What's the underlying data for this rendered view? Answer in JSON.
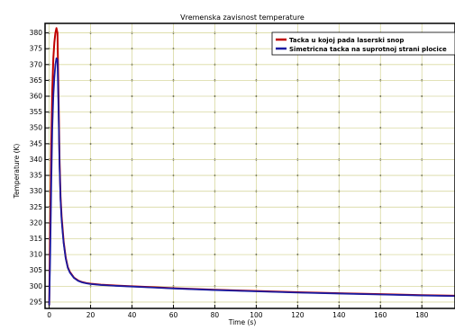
{
  "chart_data": {
    "type": "line",
    "title": "Vremenska zavisnost temperature",
    "xlabel": "Time (s)",
    "ylabel": "Temperature (K)",
    "xlim": [
      -2,
      196
    ],
    "ylim": [
      293,
      383
    ],
    "xticks": [
      0,
      20,
      40,
      60,
      80,
      100,
      120,
      140,
      160,
      180
    ],
    "yticks": [
      295,
      300,
      305,
      310,
      315,
      320,
      325,
      330,
      335,
      340,
      345,
      350,
      355,
      360,
      365,
      370,
      375,
      380
    ],
    "grid": true,
    "legend_position": "top-right",
    "colors": {
      "series_1": "#c00000",
      "series_2": "#1a1aa0",
      "grid": "#d9d9a0",
      "plot_background": "#ffffff"
    },
    "series": [
      {
        "name": "Tacka u kojoj pada laserski snop",
        "x": [
          0,
          0.5,
          1,
          1.5,
          2,
          2.5,
          3,
          3.5,
          4,
          4.5,
          5,
          5.5,
          6,
          6.5,
          7,
          8,
          9,
          10,
          12,
          14,
          16,
          18,
          20,
          25,
          30,
          40,
          50,
          60,
          80,
          100,
          120,
          140,
          160,
          180,
          196
        ],
        "values": [
          294,
          320,
          345,
          362,
          372,
          377,
          380,
          381.5,
          380,
          360,
          340,
          328,
          322,
          318,
          314,
          309,
          306,
          304.5,
          302.7,
          301.8,
          301.3,
          301,
          300.8,
          300.5,
          300.3,
          300,
          299.7,
          299.4,
          298.9,
          298.5,
          298.1,
          297.8,
          297.5,
          297.2,
          297
        ]
      },
      {
        "name": "Simetricna tacka na suprotnoj strani plocice",
        "x": [
          0,
          0.5,
          1,
          1.5,
          2,
          2.5,
          3,
          3.5,
          4,
          4.5,
          5,
          5.5,
          6,
          6.5,
          7,
          8,
          9,
          10,
          12,
          14,
          16,
          18,
          20,
          25,
          30,
          40,
          50,
          60,
          80,
          100,
          120,
          140,
          160,
          180,
          196
        ],
        "values": [
          294,
          310,
          332,
          350,
          360,
          366,
          370,
          372,
          371.5,
          356,
          338,
          327,
          321,
          317,
          313.5,
          308.7,
          305.8,
          304.3,
          302.6,
          301.7,
          301.2,
          300.9,
          300.7,
          300.4,
          300.2,
          299.9,
          299.6,
          299.3,
          298.8,
          298.4,
          298,
          297.7,
          297.4,
          297.1,
          296.9
        ]
      }
    ]
  }
}
